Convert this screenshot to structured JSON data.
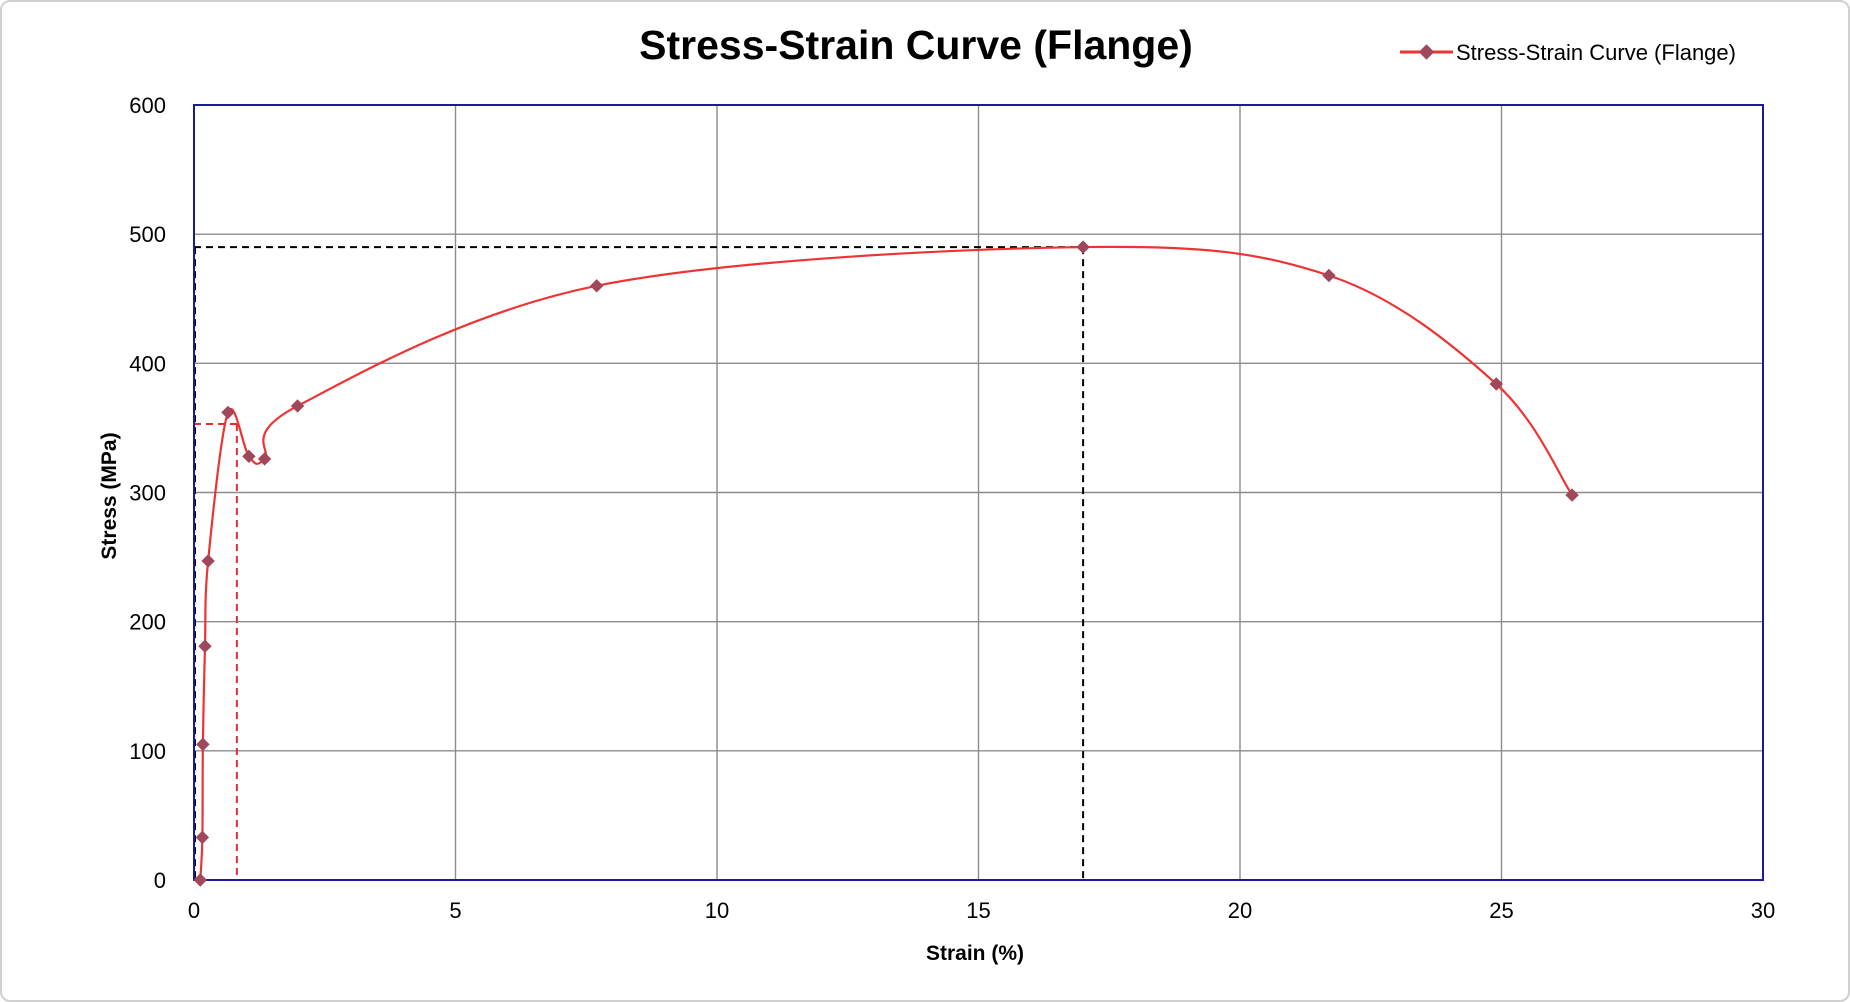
{
  "chart_data": {
    "type": "line",
    "title": "Stress-Strain Curve (Flange)",
    "xlabel": "Strain (%)",
    "ylabel": "Stress (MPa)",
    "xlim": [
      0,
      30
    ],
    "ylim": [
      0,
      600
    ],
    "x_ticks": [
      0,
      5,
      10,
      15,
      20,
      25,
      30
    ],
    "y_ticks": [
      0,
      100,
      200,
      300,
      400,
      500,
      600
    ],
    "grid": true,
    "legend_position": "top-right",
    "colors": {
      "series": "#ee3333",
      "marker": "#a0485a",
      "plot_border": "#1a1a9c",
      "grid": "#8c8c8c",
      "guide_black": "#000000",
      "guide_red": "#e03030"
    },
    "series": [
      {
        "name": "Stress-Strain Curve (Flange)",
        "smooth": true,
        "points": [
          {
            "x": 0.12,
            "y": 0
          },
          {
            "x": 0.16,
            "y": 33
          },
          {
            "x": 0.17,
            "y": 105
          },
          {
            "x": 0.21,
            "y": 181
          },
          {
            "x": 0.27,
            "y": 247
          },
          {
            "x": 0.65,
            "y": 362
          },
          {
            "x": 1.05,
            "y": 328
          },
          {
            "x": 1.35,
            "y": 326
          },
          {
            "x": 1.98,
            "y": 367
          },
          {
            "x": 7.7,
            "y": 460
          },
          {
            "x": 17.0,
            "y": 490
          },
          {
            "x": 21.7,
            "y": 468
          },
          {
            "x": 24.9,
            "y": 384
          },
          {
            "x": 26.35,
            "y": 298
          }
        ]
      }
    ],
    "guides": [
      {
        "name": "ultimate-strength-guide",
        "color": "black",
        "x": 17.0,
        "y": 490
      },
      {
        "name": "yield-point-guide",
        "color": "red",
        "x": 0.82,
        "y": 353
      }
    ]
  }
}
